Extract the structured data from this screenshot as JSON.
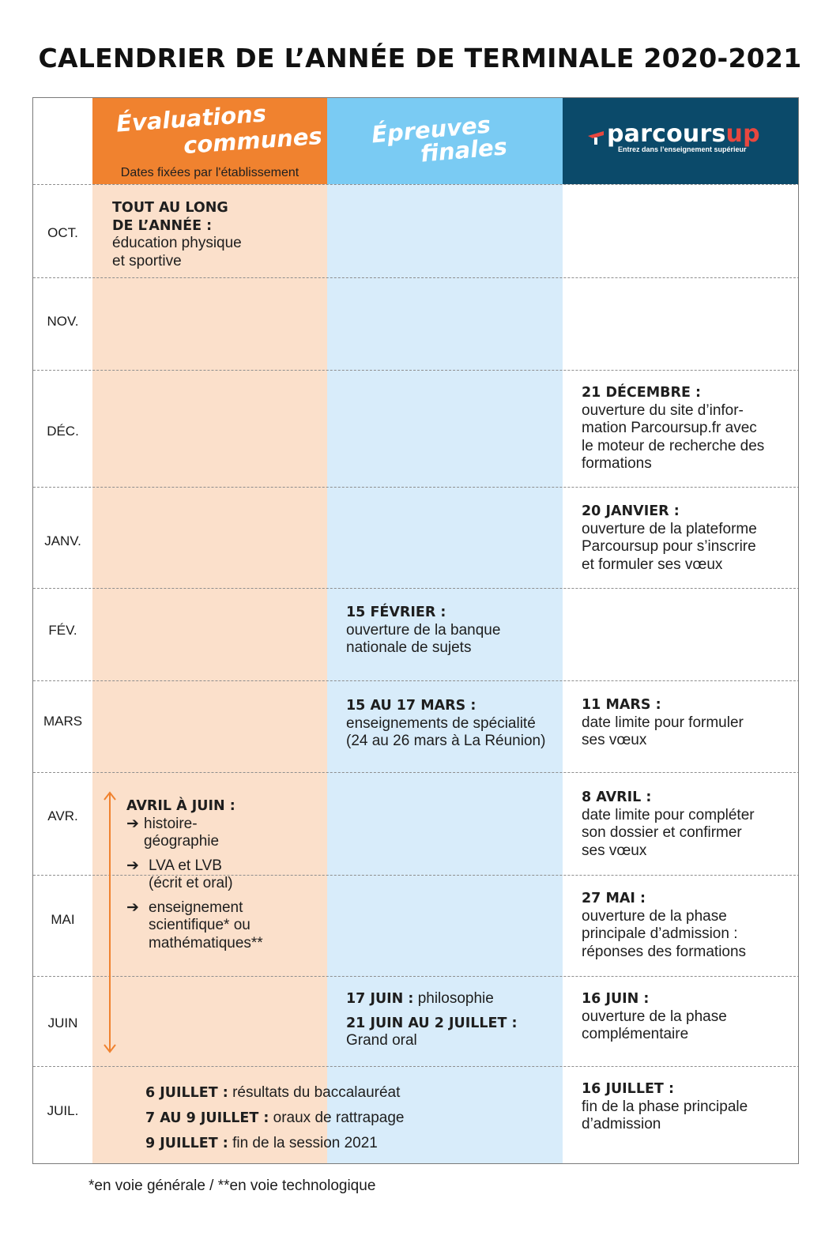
{
  "title": "CALENDRIER DE L’ANNÉE DE TERMINALE 2020-2021",
  "headers": {
    "evaluations_line1": "Évaluations",
    "evaluations_line2": "communes",
    "evaluations_sub": "Dates fixées par l'établissement",
    "epreuves_line1": "Épreuves",
    "epreuves_line2": "finales",
    "parcoursup_word_main": "parcours",
    "parcoursup_word_accent": "up",
    "parcoursup_tagline": "Entrez dans l’enseignement supérieur"
  },
  "months": [
    "OCT.",
    "NOV.",
    "DÉC.",
    "JANV.",
    "FÉV.",
    "MARS",
    "AVR.",
    "MAI",
    "JUIN",
    "JUIL."
  ],
  "evaluations": {
    "oct_bold_1": "TOUT AU LONG",
    "oct_bold_2": "DE L’ANNÉE :",
    "oct_text_1": "éducation physique",
    "oct_text_2": "et sportive",
    "avril_heading": "AVRIL À JUIN :",
    "avril_items": [
      {
        "line1": "histoire-",
        "line2": "géographie",
        "line3": ""
      },
      {
        "line1": "LVA et LVB",
        "line2": "(écrit et oral)",
        "line3": ""
      },
      {
        "line1": "enseignement",
        "line2": "scientifique* ou",
        "line3": "mathématiques**"
      }
    ],
    "arrow_glyph": "➔",
    "juil": [
      {
        "bold": "6 JUILLET :",
        "text": " résultats du baccalauréat"
      },
      {
        "bold": "7 AU 9 JUILLET :",
        "text": " oraux de rattrapage"
      },
      {
        "bold": "9 JUILLET :",
        "text": " fin de la session 2021"
      }
    ]
  },
  "epreuves": {
    "fev_bold": "15 FÉVRIER :",
    "fev_text_1": "ouverture de la banque",
    "fev_text_2": "nationale de sujets",
    "mars_bold": "15 AU 17 MARS :",
    "mars_text_1": "enseignements de spécialité",
    "mars_text_2": "(24 au 26 mars à La Réunion)",
    "juin_bold_1": "17 JUIN :",
    "juin_text_1": " philosophie",
    "juin_bold_2": "21 JUIN AU 2 JUILLET :",
    "juin_text_2": "Grand oral"
  },
  "parcoursup": {
    "dec": {
      "bold": "21 DÉCEMBRE :",
      "lines": [
        "ouverture du site d’infor-",
        "mation Parcoursup.fr avec",
        "le moteur de recherche des",
        "formations"
      ]
    },
    "janv": {
      "bold": "20 JANVIER :",
      "lines": [
        "ouverture de la plateforme",
        "Parcoursup pour s’inscrire",
        "et formuler ses vœux"
      ]
    },
    "mars": {
      "bold": "11 MARS :",
      "lines": [
        "date limite pour formuler",
        "ses vœux"
      ]
    },
    "avr": {
      "bold": "8 AVRIL :",
      "lines": [
        "date limite pour compléter",
        "son dossier et confirmer",
        "ses vœux"
      ]
    },
    "mai": {
      "bold": "27 MAI :",
      "lines": [
        "ouverture de la phase",
        "principale d’admission :",
        "réponses des formations"
      ]
    },
    "juin": {
      "bold": "16 JUIN :",
      "lines": [
        "ouverture de la phase",
        "complémentaire"
      ]
    },
    "juil": {
      "bold": "16 JUILLET :",
      "lines": [
        "fin de la phase principale",
        "d’admission"
      ]
    }
  },
  "footnote": "*en voie générale / **en voie technologique",
  "colors": {
    "orange": "#f0822f",
    "orange_light": "#fbe0cb",
    "blue": "#7acbf3",
    "blue_light": "#d8ecfa",
    "navy": "#0b4a6a",
    "red_accent": "#e8473f"
  }
}
